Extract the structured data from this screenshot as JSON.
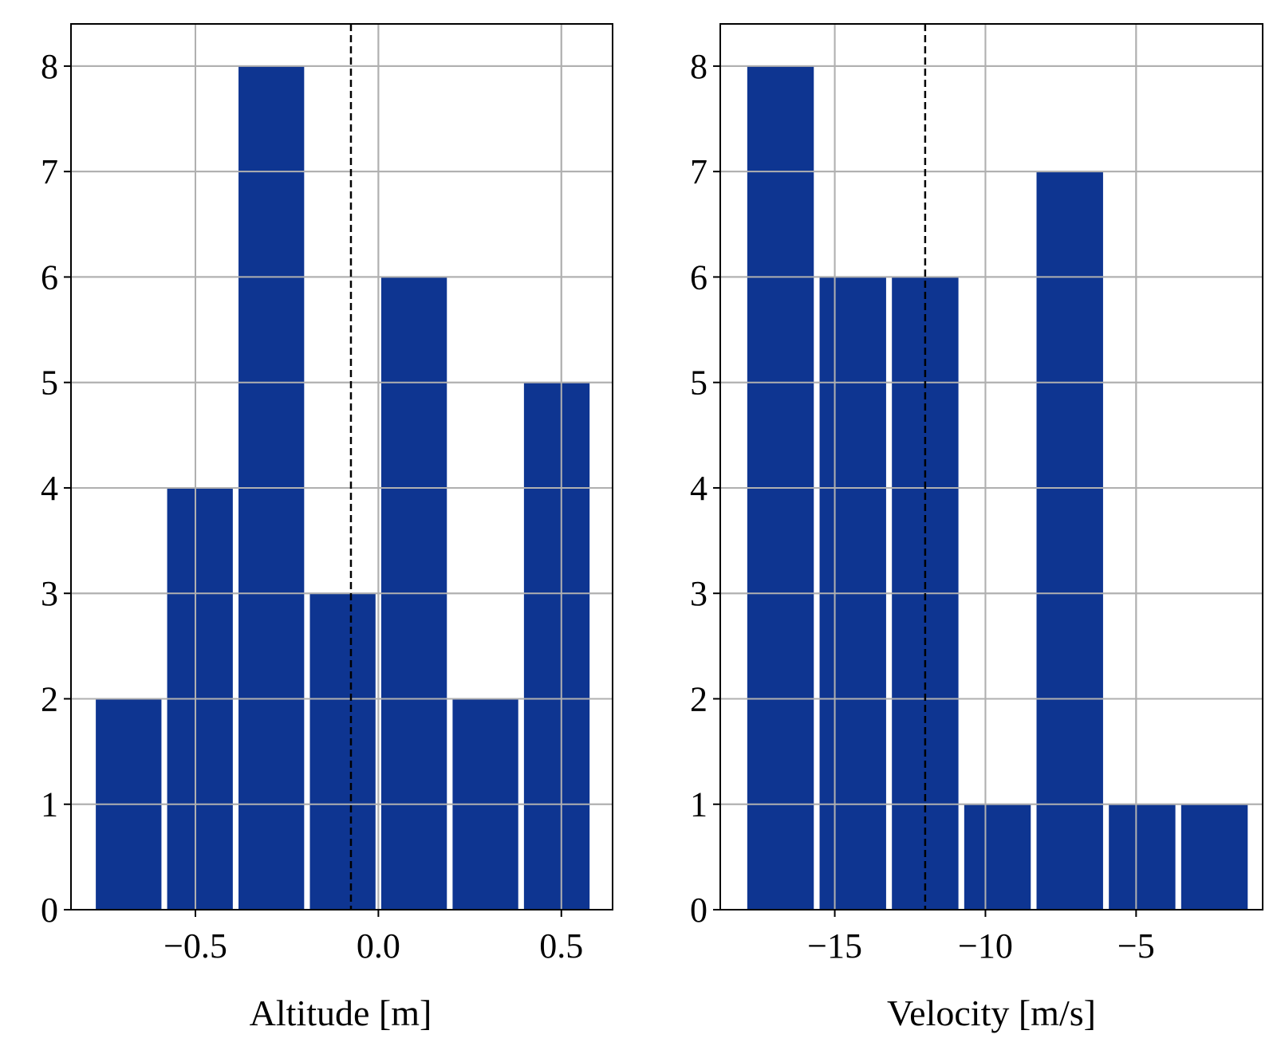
{
  "figure": {
    "background": "#ffffff",
    "bar_color": "#0e3591",
    "grid_color": "#b0b0b0",
    "reference_line_color": "#000000"
  },
  "chart_data": [
    {
      "type": "bar",
      "title": "",
      "xlabel": "Altitude [m]",
      "ylabel": "",
      "bin_edges": [
        -0.78,
        -0.585,
        -0.39,
        -0.195,
        0.0,
        0.195,
        0.39,
        0.585
      ],
      "values": [
        2,
        4,
        8,
        3,
        6,
        2,
        5
      ],
      "xlim": [
        -0.84,
        0.64
      ],
      "ylim": [
        0,
        8.4
      ],
      "xticks": [
        -0.5,
        0.0,
        0.5
      ],
      "xtick_labels": [
        "−0.5",
        "0.0",
        "0.5"
      ],
      "yticks": [
        0,
        1,
        2,
        3,
        4,
        5,
        6,
        7,
        8
      ],
      "ytick_labels": [
        "0",
        "1",
        "2",
        "3",
        "4",
        "5",
        "6",
        "7",
        "8"
      ],
      "reference_line": {
        "x": -0.075,
        "style": "dashed"
      },
      "grid": true,
      "legend": "none"
    },
    {
      "type": "bar",
      "title": "",
      "xlabel": "Velocity [m/s]",
      "ylabel": "",
      "bin_edges": [
        -18.0,
        -15.6,
        -13.2,
        -10.8,
        -8.4,
        -6.0,
        -3.6,
        -1.2
      ],
      "values": [
        8,
        6,
        6,
        1,
        7,
        1,
        1
      ],
      "xlim": [
        -18.8,
        -0.8
      ],
      "ylim": [
        0,
        8.4
      ],
      "xticks": [
        -15,
        -10,
        -5
      ],
      "xtick_labels": [
        "−15",
        "−10",
        "−5"
      ],
      "yticks": [
        0,
        1,
        2,
        3,
        4,
        5,
        6,
        7,
        8
      ],
      "ytick_labels": [
        "0",
        "1",
        "2",
        "3",
        "4",
        "5",
        "6",
        "7",
        "8"
      ],
      "reference_line": {
        "x": -12.0,
        "style": "dashed"
      },
      "grid": true,
      "legend": "none"
    }
  ]
}
